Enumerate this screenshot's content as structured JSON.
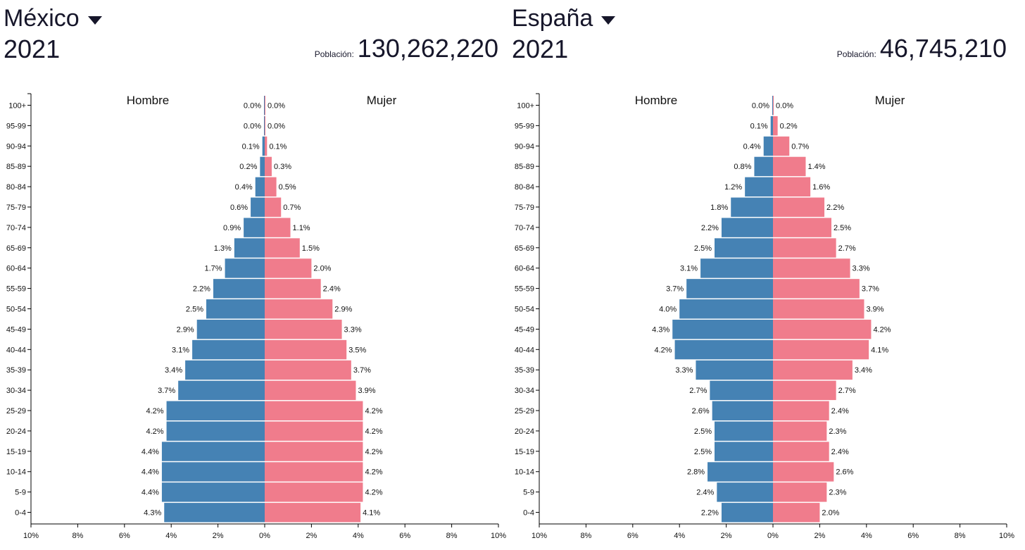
{
  "charts": [
    {
      "country": "México",
      "year": "2021",
      "population_label": "Población:",
      "population": "130,262,220"
    },
    {
      "country": "España",
      "year": "2021",
      "population_label": "Población:",
      "population": "46,745,210"
    }
  ],
  "colors": {
    "male": "#4582b4",
    "female": "#f07c8c",
    "axis": "#000000"
  },
  "icons": {
    "country_dropdown": "caret-down-icon"
  },
  "chart_data": [
    {
      "type": "bar",
      "orientation": "horizontal-population-pyramid",
      "categories": [
        "100+",
        "95-99",
        "90-94",
        "85-89",
        "80-84",
        "75-79",
        "70-74",
        "65-69",
        "60-64",
        "55-59",
        "50-54",
        "45-49",
        "40-44",
        "35-39",
        "30-34",
        "25-29",
        "20-24",
        "15-19",
        "10-14",
        "5-9",
        "0-4"
      ],
      "series": [
        {
          "name": "Hombre",
          "values": [
            0.0,
            0.0,
            0.1,
            0.2,
            0.4,
            0.6,
            0.9,
            1.3,
            1.7,
            2.2,
            2.5,
            2.9,
            3.1,
            3.4,
            3.7,
            4.2,
            4.2,
            4.4,
            4.4,
            4.4,
            4.3
          ]
        },
        {
          "name": "Mujer",
          "values": [
            0.0,
            0.0,
            0.1,
            0.3,
            0.5,
            0.7,
            1.1,
            1.5,
            2.0,
            2.4,
            2.9,
            3.3,
            3.5,
            3.7,
            3.9,
            4.2,
            4.2,
            4.2,
            4.2,
            4.2,
            4.1
          ]
        }
      ],
      "x_ticks": [
        "10%",
        "8%",
        "6%",
        "4%",
        "2%",
        "0%",
        "2%",
        "4%",
        "6%",
        "8%",
        "10%"
      ],
      "xlim": [
        -10,
        10
      ]
    },
    {
      "type": "bar",
      "orientation": "horizontal-population-pyramid",
      "categories": [
        "100+",
        "95-99",
        "90-94",
        "85-89",
        "80-84",
        "75-79",
        "70-74",
        "65-69",
        "60-64",
        "55-59",
        "50-54",
        "45-49",
        "40-44",
        "35-39",
        "30-34",
        "25-29",
        "20-24",
        "15-19",
        "10-14",
        "5-9",
        "0-4"
      ],
      "series": [
        {
          "name": "Hombre",
          "values": [
            0.0,
            0.1,
            0.4,
            0.8,
            1.2,
            1.8,
            2.2,
            2.5,
            3.1,
            3.7,
            4.0,
            4.3,
            4.2,
            3.3,
            2.7,
            2.6,
            2.5,
            2.5,
            2.8,
            2.4,
            2.2
          ]
        },
        {
          "name": "Mujer",
          "values": [
            0.0,
            0.2,
            0.7,
            1.4,
            1.6,
            2.2,
            2.5,
            2.7,
            3.3,
            3.7,
            3.9,
            4.2,
            4.1,
            3.4,
            2.7,
            2.4,
            2.3,
            2.4,
            2.6,
            2.3,
            2.0
          ]
        }
      ],
      "x_ticks": [
        "10%",
        "8%",
        "6%",
        "4%",
        "2%",
        "0%",
        "2%",
        "4%",
        "6%",
        "8%",
        "10%"
      ],
      "xlim": [
        -10,
        10
      ]
    }
  ]
}
